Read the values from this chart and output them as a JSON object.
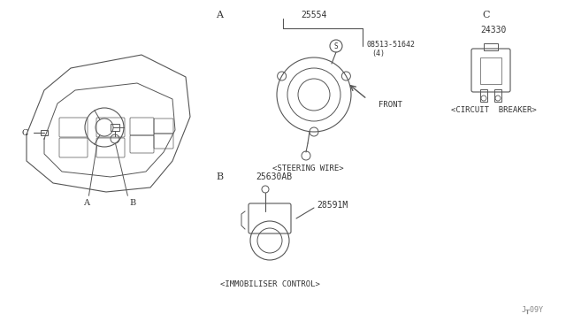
{
  "bg_color": "#ffffff",
  "line_color": "#555555",
  "text_color": "#333333",
  "part_numbers": {
    "steering_wire": "25554",
    "screw": "08513-51642",
    "screw_qty": "(4)",
    "immobiliser": "25630AB",
    "immobiliser_sub": "28591M",
    "circuit_breaker": "24330"
  },
  "labels": {
    "A_main": "A",
    "B_main": "B",
    "C_main": "C",
    "A_side": "A",
    "B_side": "B",
    "C_side": "C",
    "steering_wire_label": "<STEERING WIRE>",
    "immobiliser_label": "<IMMOBILISER CONTROL>",
    "circuit_breaker_label": "<CIRCUIT  BREAKER>",
    "front_label": "FRONT",
    "diagram_id": "J┰09Y"
  }
}
